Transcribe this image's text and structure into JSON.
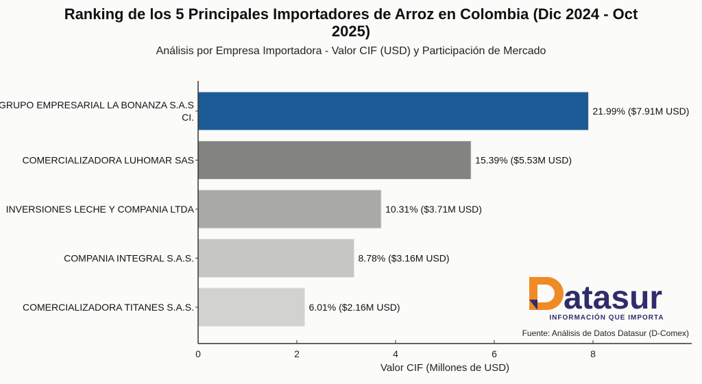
{
  "chart_data": {
    "type": "bar",
    "orientation": "horizontal",
    "title": "Ranking de los 5 Principales Importadores de Arroz en Colombia (Dic 2024 - Oct 2025)",
    "title_lines": [
      "Ranking de los 5 Principales Importadores de Arroz en Colombia (Dic 2024 - Oct",
      "2025)"
    ],
    "subtitle": "Análisis por Empresa Importadora - Valor CIF (USD) y Participación de Mercado",
    "xlabel": "Valor CIF (Millones de USD)",
    "ylabel": "",
    "xlim": [
      0,
      10
    ],
    "xticks": [
      "0",
      "2",
      "4",
      "6",
      "8"
    ],
    "grid": false,
    "categories": [
      [
        "GRUPO EMPRESARIAL LA BONANZA S.A.S",
        "CI."
      ],
      [
        "COMERCIALIZADORA LUHOMAR SAS"
      ],
      [
        "INVERSIONES LECHE Y COMPANIA LTDA"
      ],
      [
        "COMPANIA INTEGRAL S.A.S."
      ],
      [
        "COMERCIALIZADORA TITANES S.A.S."
      ]
    ],
    "values": [
      7.91,
      5.53,
      3.71,
      3.16,
      2.16
    ],
    "shares_percent": [
      21.99,
      15.39,
      10.31,
      8.78,
      6.01
    ],
    "data_labels": [
      "21.99% ($7.91M USD)",
      "15.39% ($5.53M USD)",
      "10.31% ($3.71M USD)",
      "8.78% ($3.16M USD)",
      "6.01% ($2.16M USD)"
    ],
    "colors": [
      "#1d5b96",
      "#838381",
      "#a9a9a7",
      "#c6c6c4",
      "#d2d2d0"
    ]
  },
  "logo": {
    "name": "Datasur",
    "tagline": "INFORMACIÓN QUE IMPORTA",
    "colors": {
      "orange": "#f08a24",
      "navy": "#2e2d6b"
    }
  },
  "source": "Fuente: Análisis de Datos Datasur (D-Comex)"
}
